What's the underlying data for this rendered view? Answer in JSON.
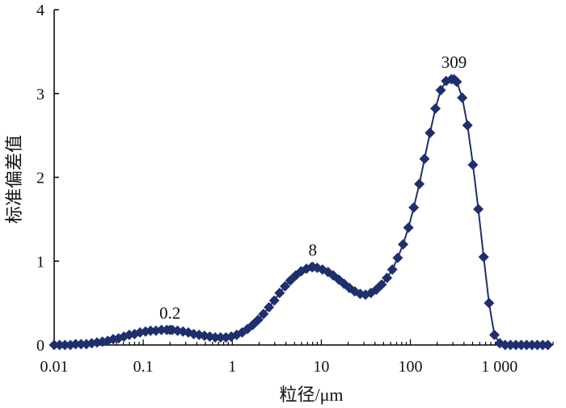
{
  "chart_data": {
    "type": "line",
    "xscale": "log",
    "xlabel": "粒径/μm",
    "ylabel": "标准偏差值",
    "xlim": [
      0.01,
      4000
    ],
    "ylim": [
      0,
      4
    ],
    "xticks": [
      {
        "value": 0.01,
        "label": "0.01"
      },
      {
        "value": 0.1,
        "label": "0.1"
      },
      {
        "value": 1,
        "label": "1"
      },
      {
        "value": 10,
        "label": "10"
      },
      {
        "value": 100,
        "label": "100"
      },
      {
        "value": 1000,
        "label": "1 000"
      }
    ],
    "yticks": [
      {
        "value": 0,
        "label": "0"
      },
      {
        "value": 1,
        "label": "1"
      },
      {
        "value": 2,
        "label": "2"
      },
      {
        "value": 3,
        "label": "3"
      },
      {
        "value": 4,
        "label": "4"
      }
    ],
    "grid": false,
    "marker": "diamond",
    "series_color": "#1f2f6b",
    "annotations": [
      {
        "text": "0.2",
        "x": 0.2,
        "y": 0.18
      },
      {
        "text": "8",
        "x": 8,
        "y": 0.93
      },
      {
        "text": "309",
        "x": 309,
        "y": 3.17
      }
    ],
    "series": [
      {
        "x": [
          0.01,
          0.0115,
          0.0132,
          0.0152,
          0.0174,
          0.02,
          0.023,
          0.0264,
          0.0303,
          0.0348,
          0.04,
          0.046,
          0.0528,
          0.0607,
          0.0697,
          0.08,
          0.092,
          0.106,
          0.121,
          0.139,
          0.16,
          0.184,
          0.2,
          0.212,
          0.243,
          0.28,
          0.321,
          0.369,
          0.424,
          0.487,
          0.559,
          0.643,
          0.738,
          0.848,
          0.974,
          1.12,
          1.29,
          1.48,
          1.7,
          1.95,
          2.24,
          2.58,
          2.96,
          3.4,
          3.91,
          4.49,
          5.16,
          5.93,
          6.81,
          7.82,
          8.0,
          8.99,
          10.3,
          11.9,
          13.6,
          15.7,
          18.0,
          20.7,
          23.7,
          27.3,
          31.3,
          36.0,
          41.4,
          47.5,
          54.6,
          62.7,
          72.1,
          82.8,
          95.1,
          109,
          126,
          144,
          166,
          191,
          219,
          252,
          289,
          309,
          332,
          382,
          438,
          504,
          579,
          665,
          764,
          878,
          1009,
          1159,
          1331,
          1529,
          1757,
          2018,
          2319,
          2664,
          3060,
          3500
        ],
        "y": [
          0.0,
          0.0,
          0.0,
          0.0,
          0.01,
          0.01,
          0.01,
          0.02,
          0.03,
          0.04,
          0.05,
          0.07,
          0.08,
          0.1,
          0.12,
          0.13,
          0.15,
          0.16,
          0.17,
          0.17,
          0.18,
          0.18,
          0.18,
          0.18,
          0.17,
          0.16,
          0.15,
          0.13,
          0.12,
          0.11,
          0.1,
          0.09,
          0.09,
          0.09,
          0.1,
          0.12,
          0.15,
          0.19,
          0.24,
          0.3,
          0.37,
          0.45,
          0.53,
          0.62,
          0.7,
          0.77,
          0.83,
          0.88,
          0.91,
          0.93,
          0.93,
          0.92,
          0.9,
          0.87,
          0.83,
          0.78,
          0.73,
          0.68,
          0.64,
          0.61,
          0.6,
          0.62,
          0.66,
          0.72,
          0.8,
          0.9,
          1.04,
          1.2,
          1.4,
          1.64,
          1.92,
          2.22,
          2.53,
          2.82,
          3.04,
          3.15,
          3.17,
          3.17,
          3.14,
          2.95,
          2.62,
          2.15,
          1.62,
          1.05,
          0.5,
          0.12,
          0.02,
          0.0,
          0.0,
          0.0,
          0.0,
          0.0,
          0.0,
          0.0,
          0.0,
          0.0
        ]
      }
    ]
  }
}
